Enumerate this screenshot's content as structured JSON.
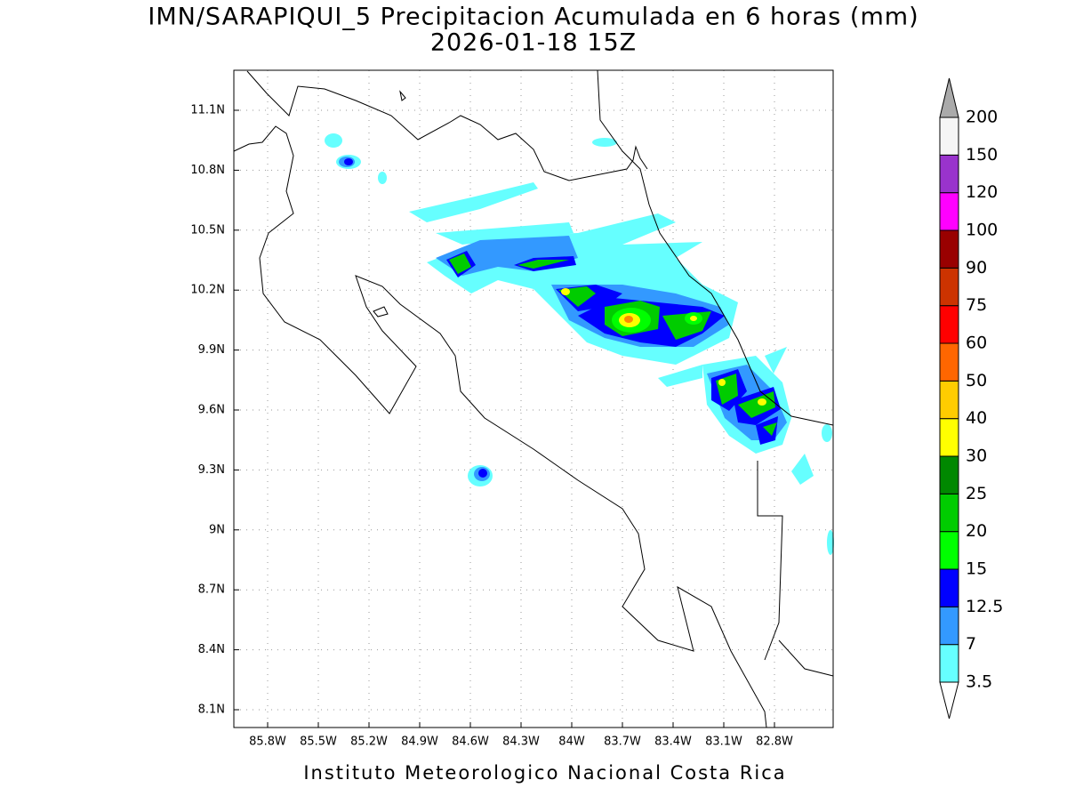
{
  "title": "IMN/SARAPIQUI_5 Precipitacion Acumulada en 6 horas (mm)",
  "subtitle": "2026-01-18 15Z",
  "lat_labels": [
    "11.1N",
    "10.8N",
    "10.5N",
    "10.2N",
    "9.9N",
    "9.6N",
    "9.3N",
    "9N",
    "8.7N",
    "8.4N",
    "8.1N"
  ],
  "lon_labels": [
    "85.8W",
    "85.5W",
    "85.2W",
    "84.9W",
    "84.6W",
    "84.3W",
    "84W",
    "83.7W",
    "83.4W",
    "83.1W",
    "82.8W"
  ],
  "colorbar": {
    "levels": [
      "3.5",
      "7",
      "12.5",
      "15",
      "20",
      "25",
      "30",
      "40",
      "50",
      "60",
      "75",
      "90",
      "100",
      "120",
      "150",
      "200"
    ],
    "colors": [
      "#66ffff",
      "#3399ff",
      "#0000ff",
      "#00ff00",
      "#00cc00",
      "#008800",
      "#ffff00",
      "#ffcc00",
      "#ff6600",
      "#ff0000",
      "#cc3300",
      "#990000",
      "#ff00ff",
      "#9933cc",
      "#f5f5f5"
    ],
    "under_color": "#ffffff",
    "over_color": "#aaaaaa"
  },
  "footer": "Instituto Meteorologico Nacional Costa Rica"
}
